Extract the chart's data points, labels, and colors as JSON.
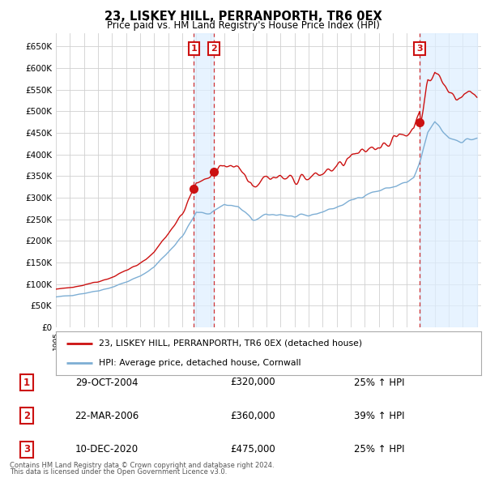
{
  "title": "23, LISKEY HILL, PERRANPORTH, TR6 0EX",
  "subtitle": "Price paid vs. HM Land Registry's House Price Index (HPI)",
  "ylim": [
    0,
    680000
  ],
  "yticks": [
    0,
    50000,
    100000,
    150000,
    200000,
    250000,
    300000,
    350000,
    400000,
    450000,
    500000,
    550000,
    600000,
    650000
  ],
  "background_color": "#ffffff",
  "grid_color": "#d0d0d0",
  "hpi_color": "#7daed4",
  "hpi_fill_color": "#ddeeff",
  "price_color": "#cc1111",
  "sale1_year": 2004.833,
  "sale2_year": 2006.25,
  "sale3_year": 2020.917,
  "sale_prices": [
    320000,
    360000,
    475000
  ],
  "sale_labels": [
    "1",
    "2",
    "3"
  ],
  "legend_property": "23, LISKEY HILL, PERRANPORTH, TR6 0EX (detached house)",
  "legend_hpi": "HPI: Average price, detached house, Cornwall",
  "table_rows": [
    {
      "num": "1",
      "date": "29-OCT-2004",
      "price": "£320,000",
      "change": "25% ↑ HPI"
    },
    {
      "num": "2",
      "date": "22-MAR-2006",
      "price": "£360,000",
      "change": "39% ↑ HPI"
    },
    {
      "num": "3",
      "date": "10-DEC-2020",
      "price": "£475,000",
      "change": "25% ↑ HPI"
    }
  ],
  "footer1": "Contains HM Land Registry data © Crown copyright and database right 2024.",
  "footer2": "This data is licensed under the Open Government Licence v3.0."
}
